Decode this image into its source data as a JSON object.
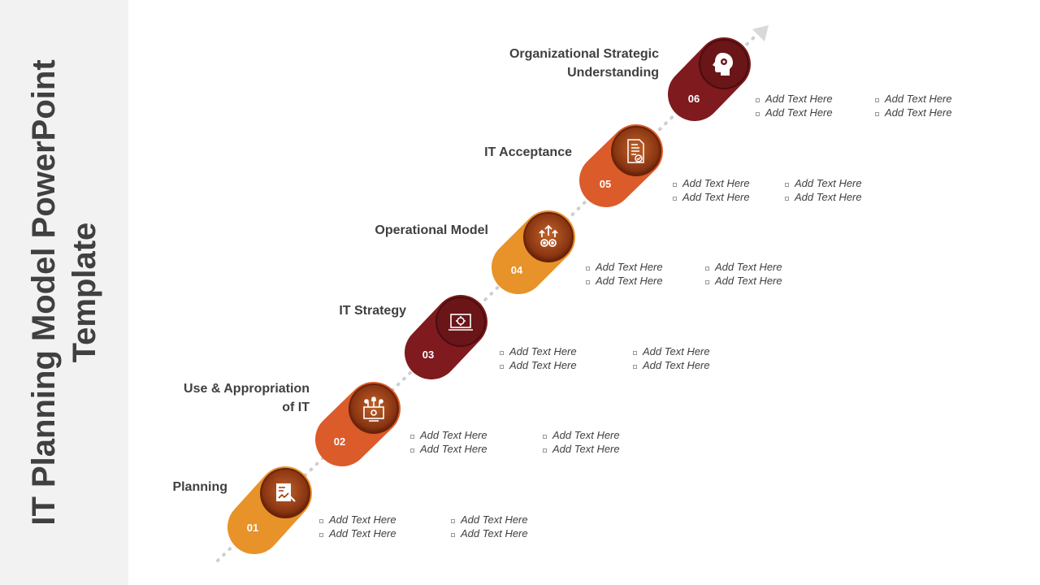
{
  "title": "IT Planning Model PowerPoint Template",
  "steps": [
    {
      "number": "01",
      "label": "Planning",
      "icon": "checklist-chart-icon",
      "color": "#e8922a",
      "bullets": [
        "Add Text Here",
        "Add Text Here",
        "Add Text Here",
        "Add Text Here"
      ]
    },
    {
      "number": "02",
      "label": "Use & Appropriation of IT",
      "icon": "computer-network-icon",
      "color": "#db5b2a",
      "bullets": [
        "Add Text Here",
        "Add Text Here",
        "Add Text Here",
        "Add Text Here"
      ]
    },
    {
      "number": "03",
      "label": "IT Strategy",
      "icon": "laptop-gear-icon",
      "color": "#7f1a1e",
      "bullets": [
        "Add Text Here",
        "Add Text Here",
        "Add Text Here",
        "Add Text Here"
      ]
    },
    {
      "number": "04",
      "label": "Operational Model",
      "icon": "gears-arrows-icon",
      "color": "#e8922a",
      "bullets": [
        "Add Text Here",
        "Add Text Here",
        "Add Text Here",
        "Add Text Here"
      ]
    },
    {
      "number": "05",
      "label": "IT Acceptance",
      "icon": "checklist-document-icon",
      "color": "#db5b2a",
      "bullets": [
        "Add Text Here",
        "Add Text Here",
        "Add Text Here",
        "Add Text Here"
      ]
    },
    {
      "number": "06",
      "label": "Organizational Strategic Understanding",
      "icon": "head-gear-icon",
      "color": "#7f1a1e",
      "bullets": [
        "Add Text Here",
        "Add Text Here",
        "Add Text Here",
        "Add Text Here"
      ]
    }
  ]
}
